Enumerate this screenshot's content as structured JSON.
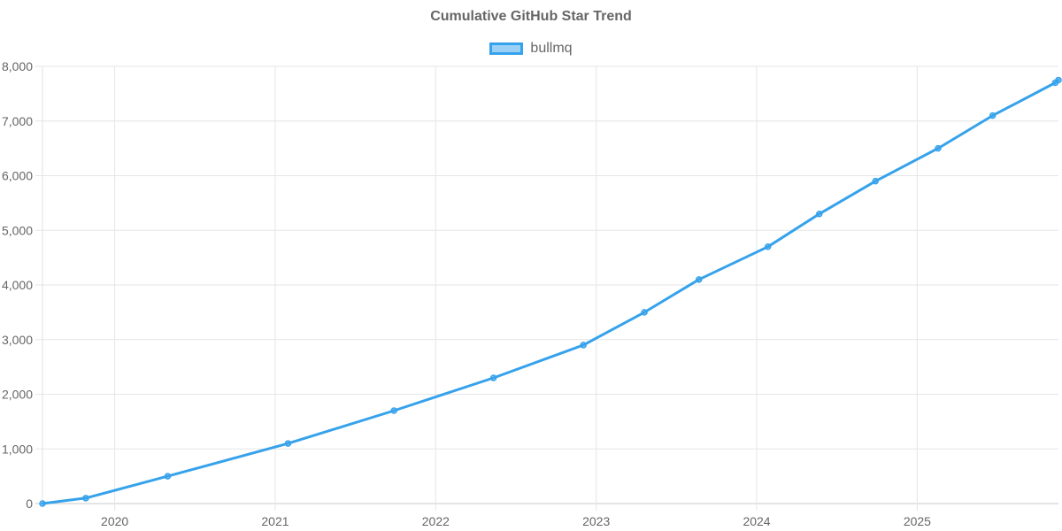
{
  "chart_data": {
    "type": "line",
    "title": "Cumulative GitHub Star Trend",
    "xlabel": "",
    "ylabel": "",
    "series": [
      {
        "name": "bullmq",
        "color": "#36a2eb",
        "points": [
          {
            "x": 2019.55,
            "y": 0
          },
          {
            "x": 2019.82,
            "y": 100
          },
          {
            "x": 2020.33,
            "y": 500
          },
          {
            "x": 2021.08,
            "y": 1100
          },
          {
            "x": 2021.74,
            "y": 1700
          },
          {
            "x": 2022.36,
            "y": 2300
          },
          {
            "x": 2022.92,
            "y": 2900
          },
          {
            "x": 2023.3,
            "y": 3500
          },
          {
            "x": 2023.64,
            "y": 4100
          },
          {
            "x": 2024.07,
            "y": 4700
          },
          {
            "x": 2024.39,
            "y": 5300
          },
          {
            "x": 2024.74,
            "y": 5900
          },
          {
            "x": 2025.13,
            "y": 6500
          },
          {
            "x": 2025.47,
            "y": 7100
          },
          {
            "x": 2025.86,
            "y": 7700
          },
          {
            "x": 2025.88,
            "y": 7750
          }
        ]
      }
    ],
    "xlim": [
      2019.55,
      2025.88
    ],
    "xticks": [
      2020,
      2021,
      2022,
      2023,
      2024,
      2025
    ],
    "xtick_labels": [
      "2020",
      "2021",
      "2022",
      "2023",
      "2024",
      "2025"
    ],
    "ylim": [
      0,
      8000
    ],
    "yticks": [
      0,
      1000,
      2000,
      3000,
      4000,
      5000,
      6000,
      7000,
      8000
    ],
    "ytick_labels": [
      "0",
      "1,000",
      "2,000",
      "3,000",
      "4,000",
      "5,000",
      "6,000",
      "7,000",
      "8,000"
    ],
    "grid": true,
    "legend": "top-center"
  }
}
